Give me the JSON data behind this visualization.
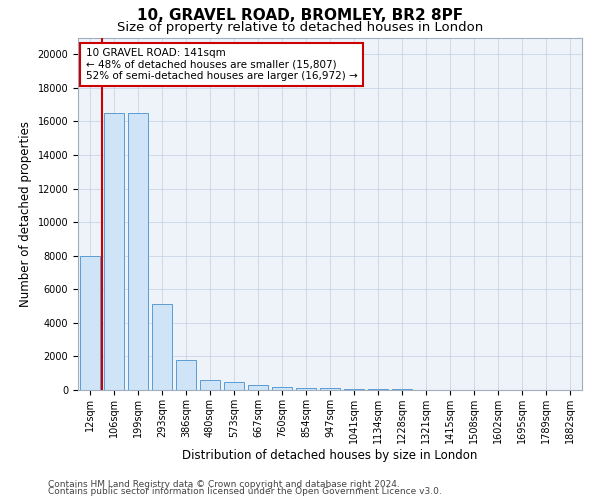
{
  "title1": "10, GRAVEL ROAD, BROMLEY, BR2 8PF",
  "title2": "Size of property relative to detached houses in London",
  "xlabel": "Distribution of detached houses by size in London",
  "ylabel": "Number of detached properties",
  "categories": [
    "12sqm",
    "106sqm",
    "199sqm",
    "293sqm",
    "386sqm",
    "480sqm",
    "573sqm",
    "667sqm",
    "760sqm",
    "854sqm",
    "947sqm",
    "1041sqm",
    "1134sqm",
    "1228sqm",
    "1321sqm",
    "1415sqm",
    "1508sqm",
    "1602sqm",
    "1695sqm",
    "1789sqm",
    "1882sqm"
  ],
  "bar_heights": [
    8000,
    16500,
    16500,
    5100,
    1800,
    600,
    450,
    280,
    160,
    120,
    90,
    70,
    50,
    35,
    25,
    18,
    12,
    8,
    6,
    4,
    2
  ],
  "bar_color": "#d0e4f7",
  "bar_edge_color": "#5b9bd5",
  "grid_color": "#c8d4e8",
  "annotation_line1": "10 GRAVEL ROAD: 141sqm",
  "annotation_line2": "← 48% of detached houses are smaller (15,807)",
  "annotation_line3": "52% of semi-detached houses are larger (16,972) →",
  "annotation_box_color": "#cc0000",
  "vline_color": "#cc0000",
  "vline_x": 1.5,
  "ylim": [
    0,
    21000
  ],
  "yticks": [
    0,
    2000,
    4000,
    6000,
    8000,
    10000,
    12000,
    14000,
    16000,
    18000,
    20000
  ],
  "footer1": "Contains HM Land Registry data © Crown copyright and database right 2024.",
  "footer2": "Contains public sector information licensed under the Open Government Licence v3.0.",
  "title1_fontsize": 11,
  "title2_fontsize": 9.5,
  "xlabel_fontsize": 8.5,
  "ylabel_fontsize": 8.5,
  "tick_fontsize": 7,
  "annotation_fontsize": 7.5,
  "footer_fontsize": 6.5
}
